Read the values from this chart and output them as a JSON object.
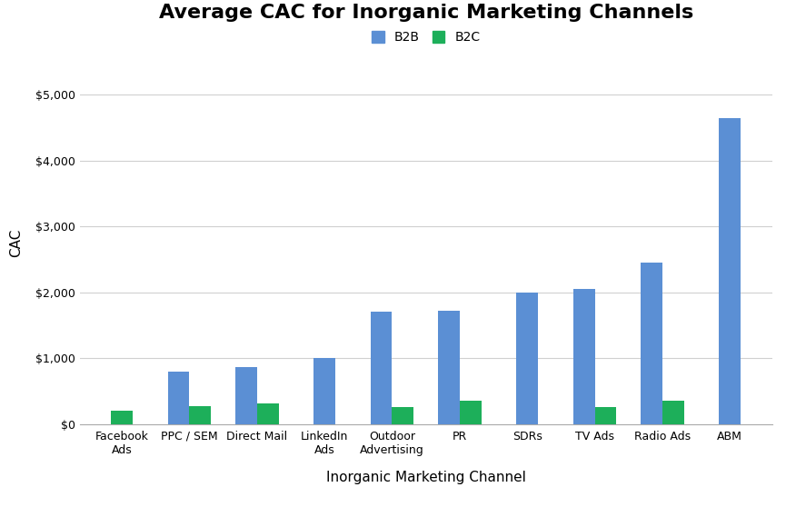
{
  "title": "Average CAC for Inorganic Marketing Channels",
  "xlabel": "Inorganic Marketing Channel",
  "ylabel": "CAC",
  "categories": [
    "Facebook\nAds",
    "PPC / SEM",
    "Direct Mail",
    "LinkedIn\nAds",
    "Outdoor\nAdvertising",
    "PR",
    "SDRs",
    "TV Ads",
    "Radio Ads",
    "ABM"
  ],
  "b2b_values": [
    0,
    800,
    860,
    1000,
    1700,
    1720,
    2000,
    2050,
    2450,
    4650
  ],
  "b2c_values": [
    200,
    270,
    310,
    0,
    255,
    360,
    0,
    260,
    350,
    0
  ],
  "b2b_color": "#5B8FD4",
  "b2c_color": "#1DAF5A",
  "ylim": [
    0,
    5500
  ],
  "yticks": [
    0,
    1000,
    2000,
    3000,
    4000,
    5000
  ],
  "ytick_labels": [
    "$0",
    "$1,000",
    "$2,000",
    "$3,000",
    "$4,000",
    "$5,000"
  ],
  "background_color": "#FFFFFF",
  "grid_color": "#D0D0D0",
  "title_fontsize": 16,
  "axis_label_fontsize": 11,
  "tick_fontsize": 9,
  "legend_labels": [
    "B2B",
    "B2C"
  ],
  "bar_width": 0.32
}
